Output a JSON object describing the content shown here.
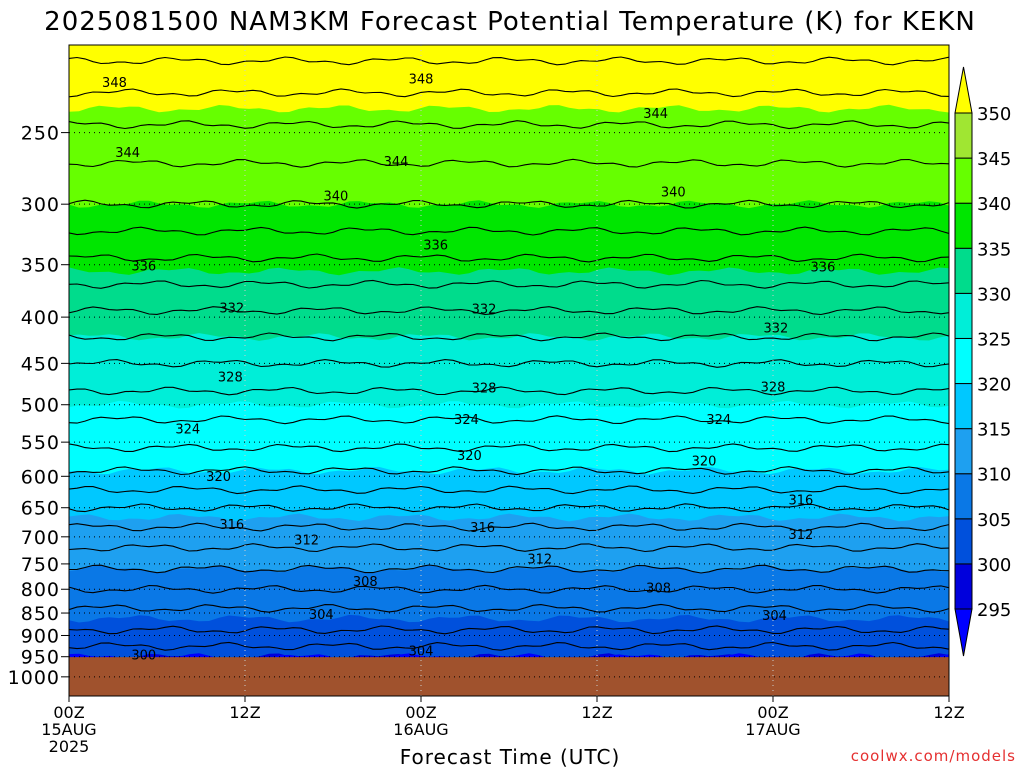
{
  "chart_data": {
    "type": "heatmap",
    "title": "2025081500 NAM3KM Forecast Potential Temperature (K) for KEKN",
    "xlabel": "Forecast Time (UTC)",
    "ylabel": "",
    "x_ticks": [
      {
        "hour": 0,
        "lines": [
          "00Z",
          "15AUG",
          "2025"
        ]
      },
      {
        "hour": 12,
        "lines": [
          "12Z"
        ]
      },
      {
        "hour": 24,
        "lines": [
          "00Z",
          "16AUG"
        ]
      },
      {
        "hour": 36,
        "lines": [
          "12Z"
        ]
      },
      {
        "hour": 48,
        "lines": [
          "00Z",
          "17AUG"
        ]
      },
      {
        "hour": 60,
        "lines": [
          "12Z"
        ]
      }
    ],
    "xlim": [
      0,
      60
    ],
    "y_ticks": [
      250,
      300,
      350,
      400,
      450,
      500,
      550,
      600,
      650,
      700,
      750,
      800,
      850,
      900,
      950,
      1000
    ],
    "ylim_hpa": [
      1050,
      200
    ],
    "y_scale": "log",
    "surface_pressure_hpa": 951,
    "grid": "dotted",
    "colorbar": {
      "ticks": [
        295,
        300,
        305,
        310,
        315,
        320,
        325,
        330,
        335,
        340,
        345,
        350
      ],
      "colors": [
        "#0000ff",
        "#0000dc",
        "#0050dc",
        "#0a78e6",
        "#1ea0f0",
        "#00c8ff",
        "#00ffff",
        "#00eed8",
        "#00dc8c",
        "#00e600",
        "#66ff00",
        "#a0e632",
        "#ffff00"
      ]
    },
    "levels": [
      {
        "p": 951,
        "theta": 300.5
      },
      {
        "p": 900,
        "theta": 303.5
      },
      {
        "p": 850,
        "theta": 305.5
      },
      {
        "p": 800,
        "theta": 308
      },
      {
        "p": 750,
        "theta": 310.5
      },
      {
        "p": 700,
        "theta": 313
      },
      {
        "p": 650,
        "theta": 316
      },
      {
        "p": 600,
        "theta": 319.5
      },
      {
        "p": 550,
        "theta": 322.5
      },
      {
        "p": 500,
        "theta": 325
      },
      {
        "p": 450,
        "theta": 328
      },
      {
        "p": 400,
        "theta": 331.5
      },
      {
        "p": 350,
        "theta": 335.5
      },
      {
        "p": 300,
        "theta": 340
      },
      {
        "p": 250,
        "theta": 343.5
      },
      {
        "p": 200,
        "theta": 349
      }
    ],
    "contour_labels": [
      {
        "text": "348",
        "hour": 3.1,
        "p": 220
      },
      {
        "text": "348",
        "hour": 24,
        "p": 218
      },
      {
        "text": "344",
        "hour": 4,
        "p": 263
      },
      {
        "text": "344",
        "hour": 22.3,
        "p": 269
      },
      {
        "text": "344",
        "hour": 40,
        "p": 238
      },
      {
        "text": "340",
        "hour": 18.2,
        "p": 294
      },
      {
        "text": "340",
        "hour": 41.2,
        "p": 291
      },
      {
        "text": "336",
        "hour": 5.1,
        "p": 351
      },
      {
        "text": "336",
        "hour": 25,
        "p": 333
      },
      {
        "text": "336",
        "hour": 51.4,
        "p": 352
      },
      {
        "text": "332",
        "hour": 11.1,
        "p": 391
      },
      {
        "text": "332",
        "hour": 28.3,
        "p": 392
      },
      {
        "text": "332",
        "hour": 48.2,
        "p": 411
      },
      {
        "text": "328",
        "hour": 11,
        "p": 466
      },
      {
        "text": "328",
        "hour": 28.3,
        "p": 479
      },
      {
        "text": "328",
        "hour": 48,
        "p": 478
      },
      {
        "text": "324",
        "hour": 8.1,
        "p": 532
      },
      {
        "text": "324",
        "hour": 27.1,
        "p": 519
      },
      {
        "text": "324",
        "hour": 44.3,
        "p": 519
      },
      {
        "text": "320",
        "hour": 10.2,
        "p": 600
      },
      {
        "text": "320",
        "hour": 27.3,
        "p": 569
      },
      {
        "text": "320",
        "hour": 43.3,
        "p": 577
      },
      {
        "text": "316",
        "hour": 11.1,
        "p": 678
      },
      {
        "text": "316",
        "hour": 28.2,
        "p": 684
      },
      {
        "text": "316",
        "hour": 49.9,
        "p": 637
      },
      {
        "text": "312",
        "hour": 16.2,
        "p": 706
      },
      {
        "text": "312",
        "hour": 32.1,
        "p": 741
      },
      {
        "text": "312",
        "hour": 49.9,
        "p": 696
      },
      {
        "text": "308",
        "hour": 20.2,
        "p": 784
      },
      {
        "text": "308",
        "hour": 40.2,
        "p": 797
      },
      {
        "text": "304",
        "hour": 17.2,
        "p": 853
      },
      {
        "text": "304",
        "hour": 24,
        "p": 936
      },
      {
        "text": "304",
        "hour": 48.1,
        "p": 855
      },
      {
        "text": "300",
        "hour": 5.1,
        "p": 946
      }
    ]
  },
  "footer": {
    "credit": "coolwx.com/models"
  },
  "colors": {
    "ground": "#a0522d",
    "credit": "#e53030"
  }
}
